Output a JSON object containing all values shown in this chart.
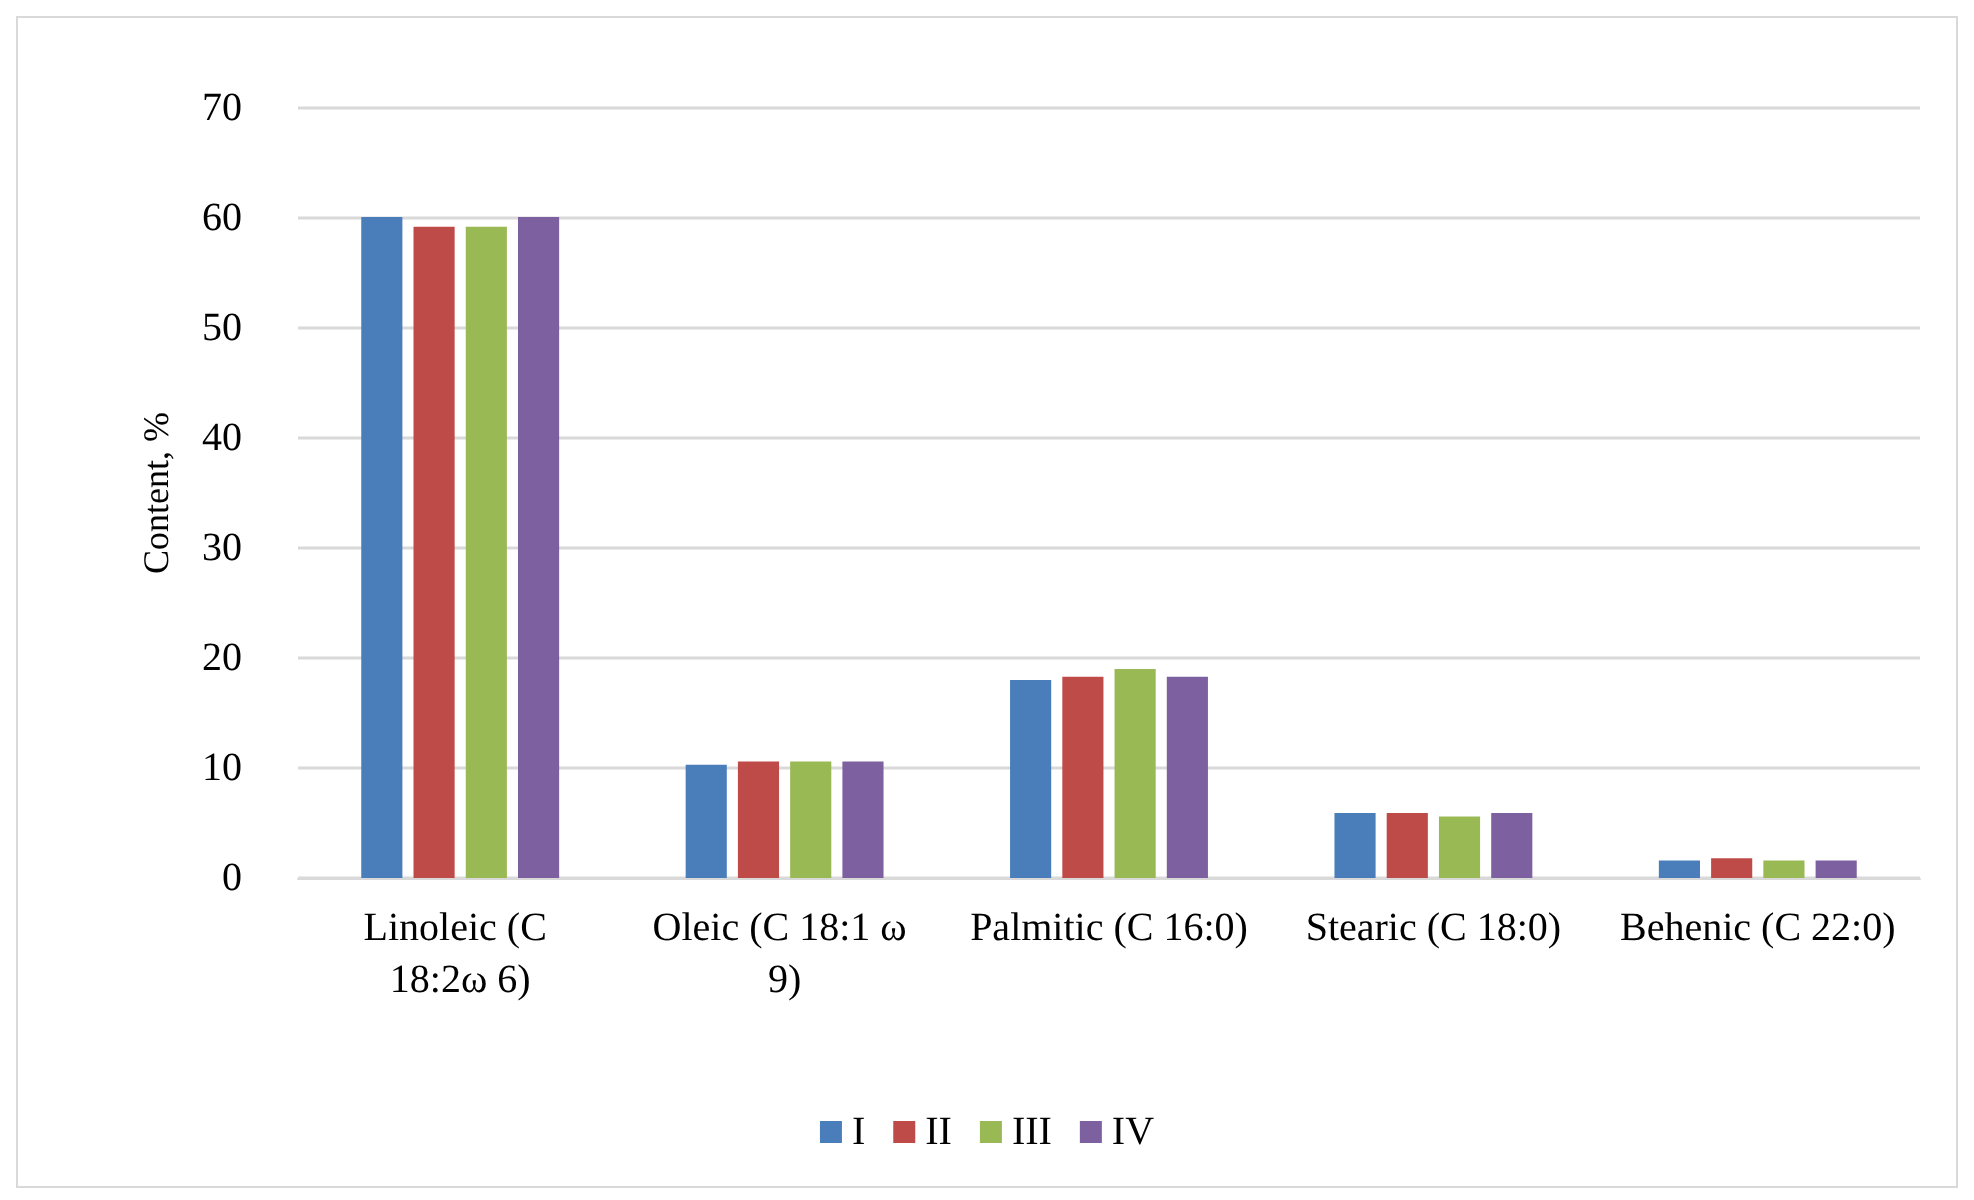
{
  "chart_data": {
    "type": "bar",
    "ylabel": "Content, %",
    "categories": [
      "Linoleic (C 18:2ω 6)",
      "Oleic (C 18:1 ω 9)",
      "Palmitic (C 16:0)",
      "Stearic (C 18:0)",
      "Behenic (C 22:0)"
    ],
    "series": [
      {
        "name": "I",
        "color": "#4a7ebb",
        "values": [
          60.1,
          10.3,
          18.0,
          5.9,
          1.6
        ]
      },
      {
        "name": "II",
        "color": "#be4b48",
        "values": [
          59.2,
          10.6,
          18.3,
          5.9,
          1.8
        ]
      },
      {
        "name": "III",
        "color": "#98b954",
        "values": [
          59.2,
          10.6,
          19.0,
          5.6,
          1.6
        ]
      },
      {
        "name": "IV",
        "color": "#7d60a0",
        "values": [
          60.1,
          10.6,
          18.3,
          5.9,
          1.6
        ]
      }
    ],
    "ylim": [
      0,
      70
    ],
    "yticks": [
      0,
      10,
      20,
      30,
      40,
      50,
      60,
      70
    ],
    "grid": "y",
    "legend": "bottom"
  }
}
